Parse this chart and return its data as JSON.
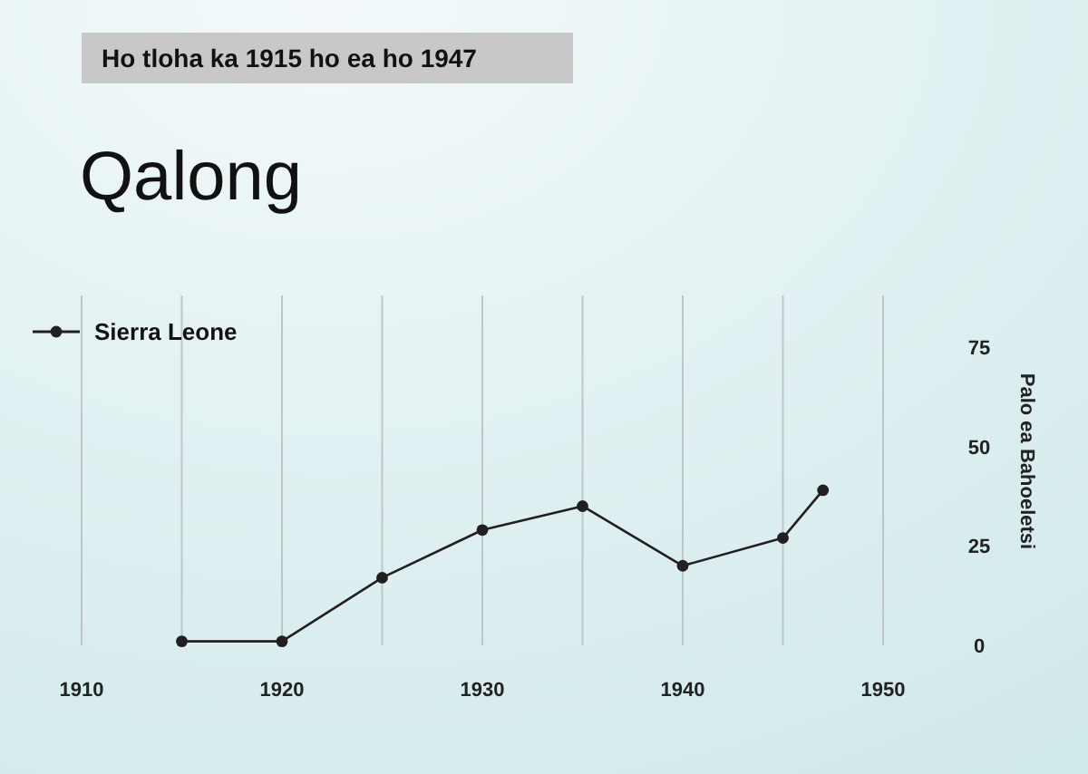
{
  "chart_data": {
    "type": "line",
    "title": "Qalong",
    "subtitle": "Ho tloha ka 1915 ho ea ho 1947",
    "ylabel": "Palo ea Bahoeletsi",
    "x": [
      1915,
      1920,
      1925,
      1930,
      1935,
      1940,
      1945,
      1947
    ],
    "series": [
      {
        "name": "Sierra Leone",
        "color": "#231f20",
        "values": [
          1,
          1,
          17,
          29,
          35,
          20,
          27,
          39
        ]
      }
    ],
    "xlim": [
      1910,
      1950
    ],
    "xticks": [
      1910,
      {
        "value": 1915,
        "label": null
      },
      1920,
      {
        "value": 1925,
        "label": null
      },
      1930,
      {
        "value": 1935,
        "label": null
      },
      1940,
      {
        "value": 1945,
        "label": null
      },
      1950
    ],
    "ylim": [
      0,
      88
    ],
    "yticks": [
      0,
      25,
      50,
      75
    ],
    "grid": "x",
    "legend": "top left",
    "marker": "circle",
    "line_style": "solid"
  }
}
